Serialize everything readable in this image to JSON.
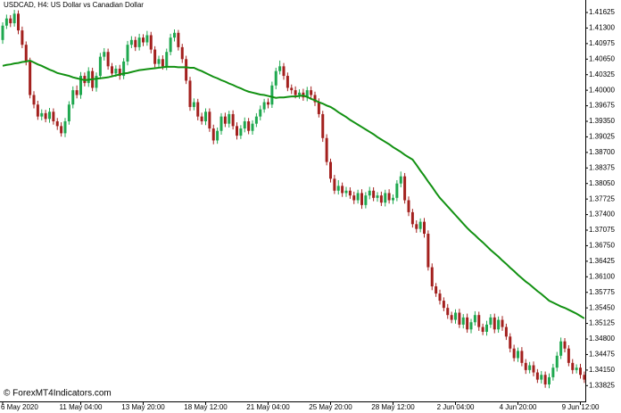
{
  "chart_data": {
    "type": "candlestick",
    "title": "USDCAD, H4:  US Dollar vs Canadian Dollar",
    "watermark": "© ForexMT4Indicators.com",
    "up_color": "#1fa84f",
    "down_color": "#a3201e",
    "ma_color": "#129112",
    "grid": false,
    "ylim": [
      1.33495,
      1.41886
    ],
    "yticks": [
      1.41625,
      {
        "value": 1.413,
        "label": "1.41300"
      },
      1.40975,
      {
        "value": 1.4065,
        "label": "1.40650"
      },
      1.40325,
      {
        "value": 1.4,
        "label": "1.40000"
      },
      1.39675,
      {
        "value": 1.3935,
        "label": "1.39350"
      },
      1.39025,
      {
        "value": 1.387,
        "label": "1.38700"
      },
      1.38375,
      {
        "value": 1.3805,
        "label": "1.38050"
      },
      1.37725,
      {
        "value": 1.374,
        "label": "1.37400"
      },
      1.37075,
      {
        "value": 1.3675,
        "label": "1.36750"
      },
      1.36425,
      {
        "value": 1.361,
        "label": "1.36100"
      },
      1.35775,
      {
        "value": 1.3545,
        "label": "1.35450"
      },
      1.35125,
      {
        "value": 1.348,
        "label": "1.34800"
      },
      1.34475,
      {
        "value": 1.3415,
        "label": "1.34150"
      },
      1.33825
    ],
    "categories": [
      "6 May 2020",
      null,
      null,
      null,
      null,
      null,
      null,
      null,
      null,
      null,
      null,
      null,
      null,
      null,
      null,
      null,
      null,
      null,
      null,
      null,
      "11 May 04:00",
      null,
      null,
      null,
      null,
      null,
      null,
      null,
      null,
      null,
      null,
      null,
      null,
      null,
      null,
      null,
      "13 May 20:00",
      null,
      null,
      null,
      null,
      null,
      null,
      null,
      null,
      null,
      null,
      null,
      null,
      null,
      null,
      null,
      "18 May 12:00",
      null,
      null,
      null,
      null,
      null,
      null,
      null,
      null,
      null,
      null,
      null,
      null,
      null,
      null,
      null,
      "21 May 04:00",
      null,
      null,
      null,
      null,
      null,
      null,
      null,
      null,
      null,
      null,
      null,
      null,
      null,
      null,
      null,
      "25 May 20:00",
      null,
      null,
      null,
      null,
      null,
      null,
      null,
      null,
      null,
      null,
      null,
      null,
      null,
      null,
      null,
      "28 May 12:00",
      null,
      null,
      null,
      null,
      null,
      null,
      null,
      null,
      null,
      null,
      null,
      null,
      null,
      null,
      null,
      "2 Jun 04:00",
      null,
      null,
      null,
      null,
      null,
      null,
      null,
      null,
      null,
      null,
      null,
      null,
      null,
      null,
      null,
      "4 Jun 20:00",
      null,
      null,
      null,
      null,
      null,
      null,
      null,
      null,
      null,
      null,
      null,
      null,
      null,
      null,
      null,
      "9 Jun 12:00",
      null
    ],
    "open": [
      1.4105,
      1.4135,
      1.415,
      1.414,
      1.416,
      1.4125,
      1.4095,
      1.406,
      1.399,
      1.397,
      1.3945,
      1.3952,
      1.394,
      1.3955,
      1.3935,
      1.3925,
      1.391,
      1.3935,
      1.397,
      1.4,
      1.399,
      1.403,
      1.4015,
      1.404,
      1.4005,
      1.403,
      1.407,
      1.408,
      1.405,
      1.4035,
      1.4045,
      1.403,
      1.406,
      1.4095,
      1.4105,
      1.409,
      1.411,
      1.41,
      1.4115,
      1.4085,
      1.4055,
      1.4065,
      1.405,
      1.408,
      1.411,
      1.412,
      1.409,
      1.4065,
      1.402,
      1.3965,
      1.3975,
      1.3945,
      1.3935,
      1.3955,
      1.392,
      1.3895,
      1.3915,
      1.3945,
      1.393,
      1.395,
      1.3925,
      1.3905,
      1.392,
      1.3935,
      1.3915,
      1.393,
      1.3945,
      1.396,
      1.3975,
      1.397,
      1.401,
      1.404,
      1.405,
      1.403,
      1.4005,
      1.4,
      1.399,
      1.3995,
      1.3985,
      1.4,
      1.399,
      1.3975,
      1.395,
      1.39,
      1.385,
      1.3815,
      1.379,
      1.38,
      1.3785,
      1.379,
      1.378,
      1.377,
      1.3785,
      1.376,
      1.378,
      1.379,
      1.3775,
      1.378,
      1.3765,
      1.3785,
      1.377,
      1.3775,
      1.3805,
      1.382,
      1.377,
      1.3745,
      1.372,
      1.371,
      1.3725,
      1.37,
      1.363,
      1.359,
      1.3575,
      1.356,
      1.3545,
      1.353,
      1.352,
      1.3535,
      1.351,
      1.3525,
      1.35,
      1.3515,
      1.353,
      1.3505,
      1.3495,
      1.351,
      1.3525,
      1.35,
      1.352,
      1.3505,
      1.3485,
      1.346,
      1.344,
      1.3455,
      1.343,
      1.3415,
      1.3425,
      1.341,
      1.3395,
      1.3405,
      1.3385,
      1.34,
      1.342,
      1.3445,
      1.3475,
      1.346,
      1.343,
      1.3415,
      1.342,
      1.3405
    ],
    "high": [
      1.4142,
      1.4158,
      1.4157,
      1.4168,
      1.4167,
      1.4133,
      1.4102,
      1.4068,
      1.3998,
      1.3978,
      1.396,
      1.3959,
      1.3963,
      1.3962,
      1.3942,
      1.3933,
      1.3942,
      1.3977,
      1.4008,
      1.401,
      1.4038,
      1.4037,
      1.4048,
      1.4047,
      1.4037,
      1.4078,
      1.4088,
      1.4087,
      1.4057,
      1.4052,
      1.4053,
      1.4067,
      1.4103,
      1.4113,
      1.4112,
      1.4118,
      1.4117,
      1.4124,
      1.4122,
      1.4092,
      1.4072,
      1.4073,
      1.4087,
      1.4118,
      1.4127,
      1.4126,
      1.4097,
      1.4072,
      1.4028,
      1.3983,
      1.3982,
      1.3953,
      1.3962,
      1.3962,
      1.3928,
      1.3922,
      1.3952,
      1.3953,
      1.3957,
      1.3958,
      1.3933,
      1.3927,
      1.3943,
      1.3942,
      1.3937,
      1.3952,
      1.3968,
      1.3982,
      1.3983,
      1.4018,
      1.4047,
      1.4062,
      1.4057,
      1.4037,
      1.4012,
      1.4008,
      1.4002,
      1.4003,
      1.4007,
      1.4008,
      1.3997,
      1.3983,
      1.3957,
      1.3908,
      1.3857,
      1.3823,
      1.3812,
      1.3807,
      1.3798,
      1.3797,
      1.3788,
      1.3792,
      1.3793,
      1.3787,
      1.3798,
      1.3797,
      1.3787,
      1.3788,
      1.3792,
      1.3793,
      1.3782,
      1.3812,
      1.383,
      1.3827,
      1.3778,
      1.3752,
      1.3728,
      1.3732,
      1.3733,
      1.3707,
      1.3638,
      1.3597,
      1.3583,
      1.3567,
      1.3553,
      1.3537,
      1.3542,
      1.3543,
      1.3532,
      1.3533,
      1.3522,
      1.3538,
      1.3537,
      1.3512,
      1.3518,
      1.3532,
      1.3533,
      1.3527,
      1.3528,
      1.3512,
      1.3492,
      1.3468,
      1.3462,
      1.3463,
      1.3438,
      1.3432,
      1.3433,
      1.3417,
      1.3413,
      1.3412,
      1.3408,
      1.3428,
      1.3453,
      1.3483,
      1.3482,
      1.3467,
      1.3438,
      1.3427,
      1.3428,
      1.3412
    ],
    "low": [
      1.4097,
      1.4128,
      1.4132,
      1.4133,
      1.4117,
      1.4088,
      1.4052,
      1.3983,
      1.3962,
      1.3938,
      1.3937,
      1.3933,
      1.3932,
      1.3928,
      1.3917,
      1.3903,
      1.3902,
      1.3928,
      1.3962,
      1.3983,
      1.3982,
      1.4008,
      1.4007,
      1.3998,
      1.3997,
      1.4023,
      1.4062,
      1.4043,
      1.4027,
      1.4028,
      1.4022,
      1.4023,
      1.4052,
      1.4088,
      1.4082,
      1.4083,
      1.4092,
      1.4093,
      1.4077,
      1.4048,
      1.4047,
      1.4043,
      1.4042,
      1.4073,
      1.4102,
      1.4083,
      1.4057,
      1.4013,
      1.3957,
      1.3958,
      1.3937,
      1.3928,
      1.3927,
      1.3913,
      1.3887,
      1.3888,
      1.3907,
      1.3923,
      1.3922,
      1.3918,
      1.3897,
      1.3898,
      1.3912,
      1.3908,
      1.3907,
      1.3923,
      1.3937,
      1.3953,
      1.3962,
      1.3963,
      1.4002,
      1.4033,
      1.4022,
      1.3998,
      1.3992,
      1.3983,
      1.3982,
      1.3978,
      1.3977,
      1.3983,
      1.3967,
      1.3943,
      1.3892,
      1.3843,
      1.3807,
      1.3783,
      1.3782,
      1.3777,
      1.3777,
      1.3773,
      1.3762,
      1.3763,
      1.3752,
      1.3753,
      1.3772,
      1.3768,
      1.3767,
      1.3758,
      1.3757,
      1.3763,
      1.3762,
      1.3768,
      1.3797,
      1.3763,
      1.3737,
      1.3713,
      1.3702,
      1.3703,
      1.3692,
      1.3623,
      1.3582,
      1.3568,
      1.3552,
      1.3538,
      1.3522,
      1.3513,
      1.3512,
      1.3503,
      1.3502,
      1.3493,
      1.3492,
      1.3508,
      1.3497,
      1.3488,
      1.3487,
      1.3503,
      1.3492,
      1.3493,
      1.3497,
      1.3478,
      1.3452,
      1.3433,
      1.3432,
      1.3423,
      1.3407,
      1.3408,
      1.3402,
      1.3388,
      1.3387,
      1.3378,
      1.3377,
      1.3393,
      1.3412,
      1.3438,
      1.3452,
      1.3423,
      1.3407,
      1.3408,
      1.3397,
      1.3388
    ],
    "close": [
      1.4135,
      1.415,
      1.414,
      1.416,
      1.4125,
      1.4095,
      1.406,
      1.399,
      1.397,
      1.3945,
      1.3952,
      1.394,
      1.3955,
      1.3935,
      1.3925,
      1.391,
      1.3935,
      1.397,
      1.4,
      1.399,
      1.403,
      1.4015,
      1.404,
      1.4005,
      1.403,
      1.407,
      1.408,
      1.405,
      1.4035,
      1.4045,
      1.403,
      1.406,
      1.4095,
      1.4105,
      1.409,
      1.411,
      1.41,
      1.4115,
      1.4085,
      1.4055,
      1.4065,
      1.405,
      1.408,
      1.411,
      1.412,
      1.409,
      1.4065,
      1.402,
      1.3965,
      1.3975,
      1.3945,
      1.3935,
      1.3955,
      1.392,
      1.3895,
      1.3915,
      1.3945,
      1.393,
      1.395,
      1.3925,
      1.3905,
      1.392,
      1.3935,
      1.3915,
      1.393,
      1.3945,
      1.396,
      1.3975,
      1.397,
      1.401,
      1.404,
      1.405,
      1.403,
      1.4005,
      1.4,
      1.399,
      1.3995,
      1.3985,
      1.4,
      1.399,
      1.3975,
      1.395,
      1.39,
      1.385,
      1.3815,
      1.379,
      1.38,
      1.3785,
      1.379,
      1.378,
      1.377,
      1.3785,
      1.376,
      1.378,
      1.379,
      1.3775,
      1.378,
      1.3765,
      1.3785,
      1.377,
      1.3775,
      1.3805,
      1.382,
      1.377,
      1.3745,
      1.372,
      1.371,
      1.3725,
      1.37,
      1.363,
      1.359,
      1.3575,
      1.356,
      1.3545,
      1.353,
      1.352,
      1.3535,
      1.351,
      1.3525,
      1.35,
      1.3515,
      1.353,
      1.3505,
      1.3495,
      1.351,
      1.3525,
      1.35,
      1.352,
      1.3505,
      1.3485,
      1.346,
      1.344,
      1.3455,
      1.343,
      1.3415,
      1.3425,
      1.341,
      1.3395,
      1.3405,
      1.3385,
      1.34,
      1.342,
      1.3445,
      1.3475,
      1.346,
      1.343,
      1.3415,
      1.342,
      1.3405,
      1.3395
    ],
    "ma_values": [
      1.4051,
      1.4053,
      1.4054,
      1.4056,
      1.4057,
      1.4059,
      1.406,
      1.4062,
      1.4058,
      1.4054,
      1.4051,
      1.4047,
      1.4043,
      1.404,
      1.4036,
      1.4034,
      1.4032,
      1.403,
      1.4027,
      1.4025,
      1.4023,
      1.4021,
      1.4022,
      1.4023,
      1.4024,
      1.4025,
      1.4026,
      1.4027,
      1.4029,
      1.4031,
      1.4033,
      1.4035,
      1.4036,
      1.4038,
      1.404,
      1.4042,
      1.4043,
      1.4044,
      1.4045,
      1.4046,
      1.4047,
      1.4048,
      1.4049,
      1.4049,
      1.4049,
      1.4048,
      1.4048,
      1.4048,
      1.4047,
      1.4047,
      1.4043,
      1.404,
      1.4036,
      1.4032,
      1.4028,
      1.4025,
      1.4021,
      1.4018,
      1.4014,
      1.4011,
      1.4007,
      1.4004,
      1.4,
      1.3997,
      1.3995,
      1.3993,
      1.3991,
      1.399,
      1.3988,
      1.3986,
      1.3984,
      1.3985,
      1.3985,
      1.3986,
      1.3987,
      1.3987,
      1.3988,
      1.3989,
      1.3986,
      1.3982,
      1.3979,
      1.3975,
      1.3972,
      1.3968,
      1.3965,
      1.396,
      1.3954,
      1.3949,
      1.3944,
      1.3938,
      1.3933,
      1.3928,
      1.3923,
      1.3918,
      1.3913,
      1.3908,
      1.3902,
      1.3897,
      1.3892,
      1.3887,
      1.3881,
      1.3876,
      1.3871,
      1.3865,
      1.386,
      1.3855,
      1.3844,
      1.3832,
      1.3821,
      1.3809,
      1.3798,
      1.3786,
      1.3775,
      1.3766,
      1.3757,
      1.3748,
      1.3739,
      1.373,
      1.3721,
      1.3712,
      1.3704,
      1.3697,
      1.3689,
      1.3682,
      1.3674,
      1.3666,
      1.3659,
      1.3652,
      1.3644,
      1.3637,
      1.3629,
      1.3622,
      1.3614,
      1.3607,
      1.36,
      1.3594,
      1.3587,
      1.358,
      1.3574,
      1.3567,
      1.356,
      1.3556,
      1.3552,
      1.3548,
      1.3545,
      1.3541,
      1.3537,
      1.3533,
      1.3528,
      1.3523
    ]
  }
}
